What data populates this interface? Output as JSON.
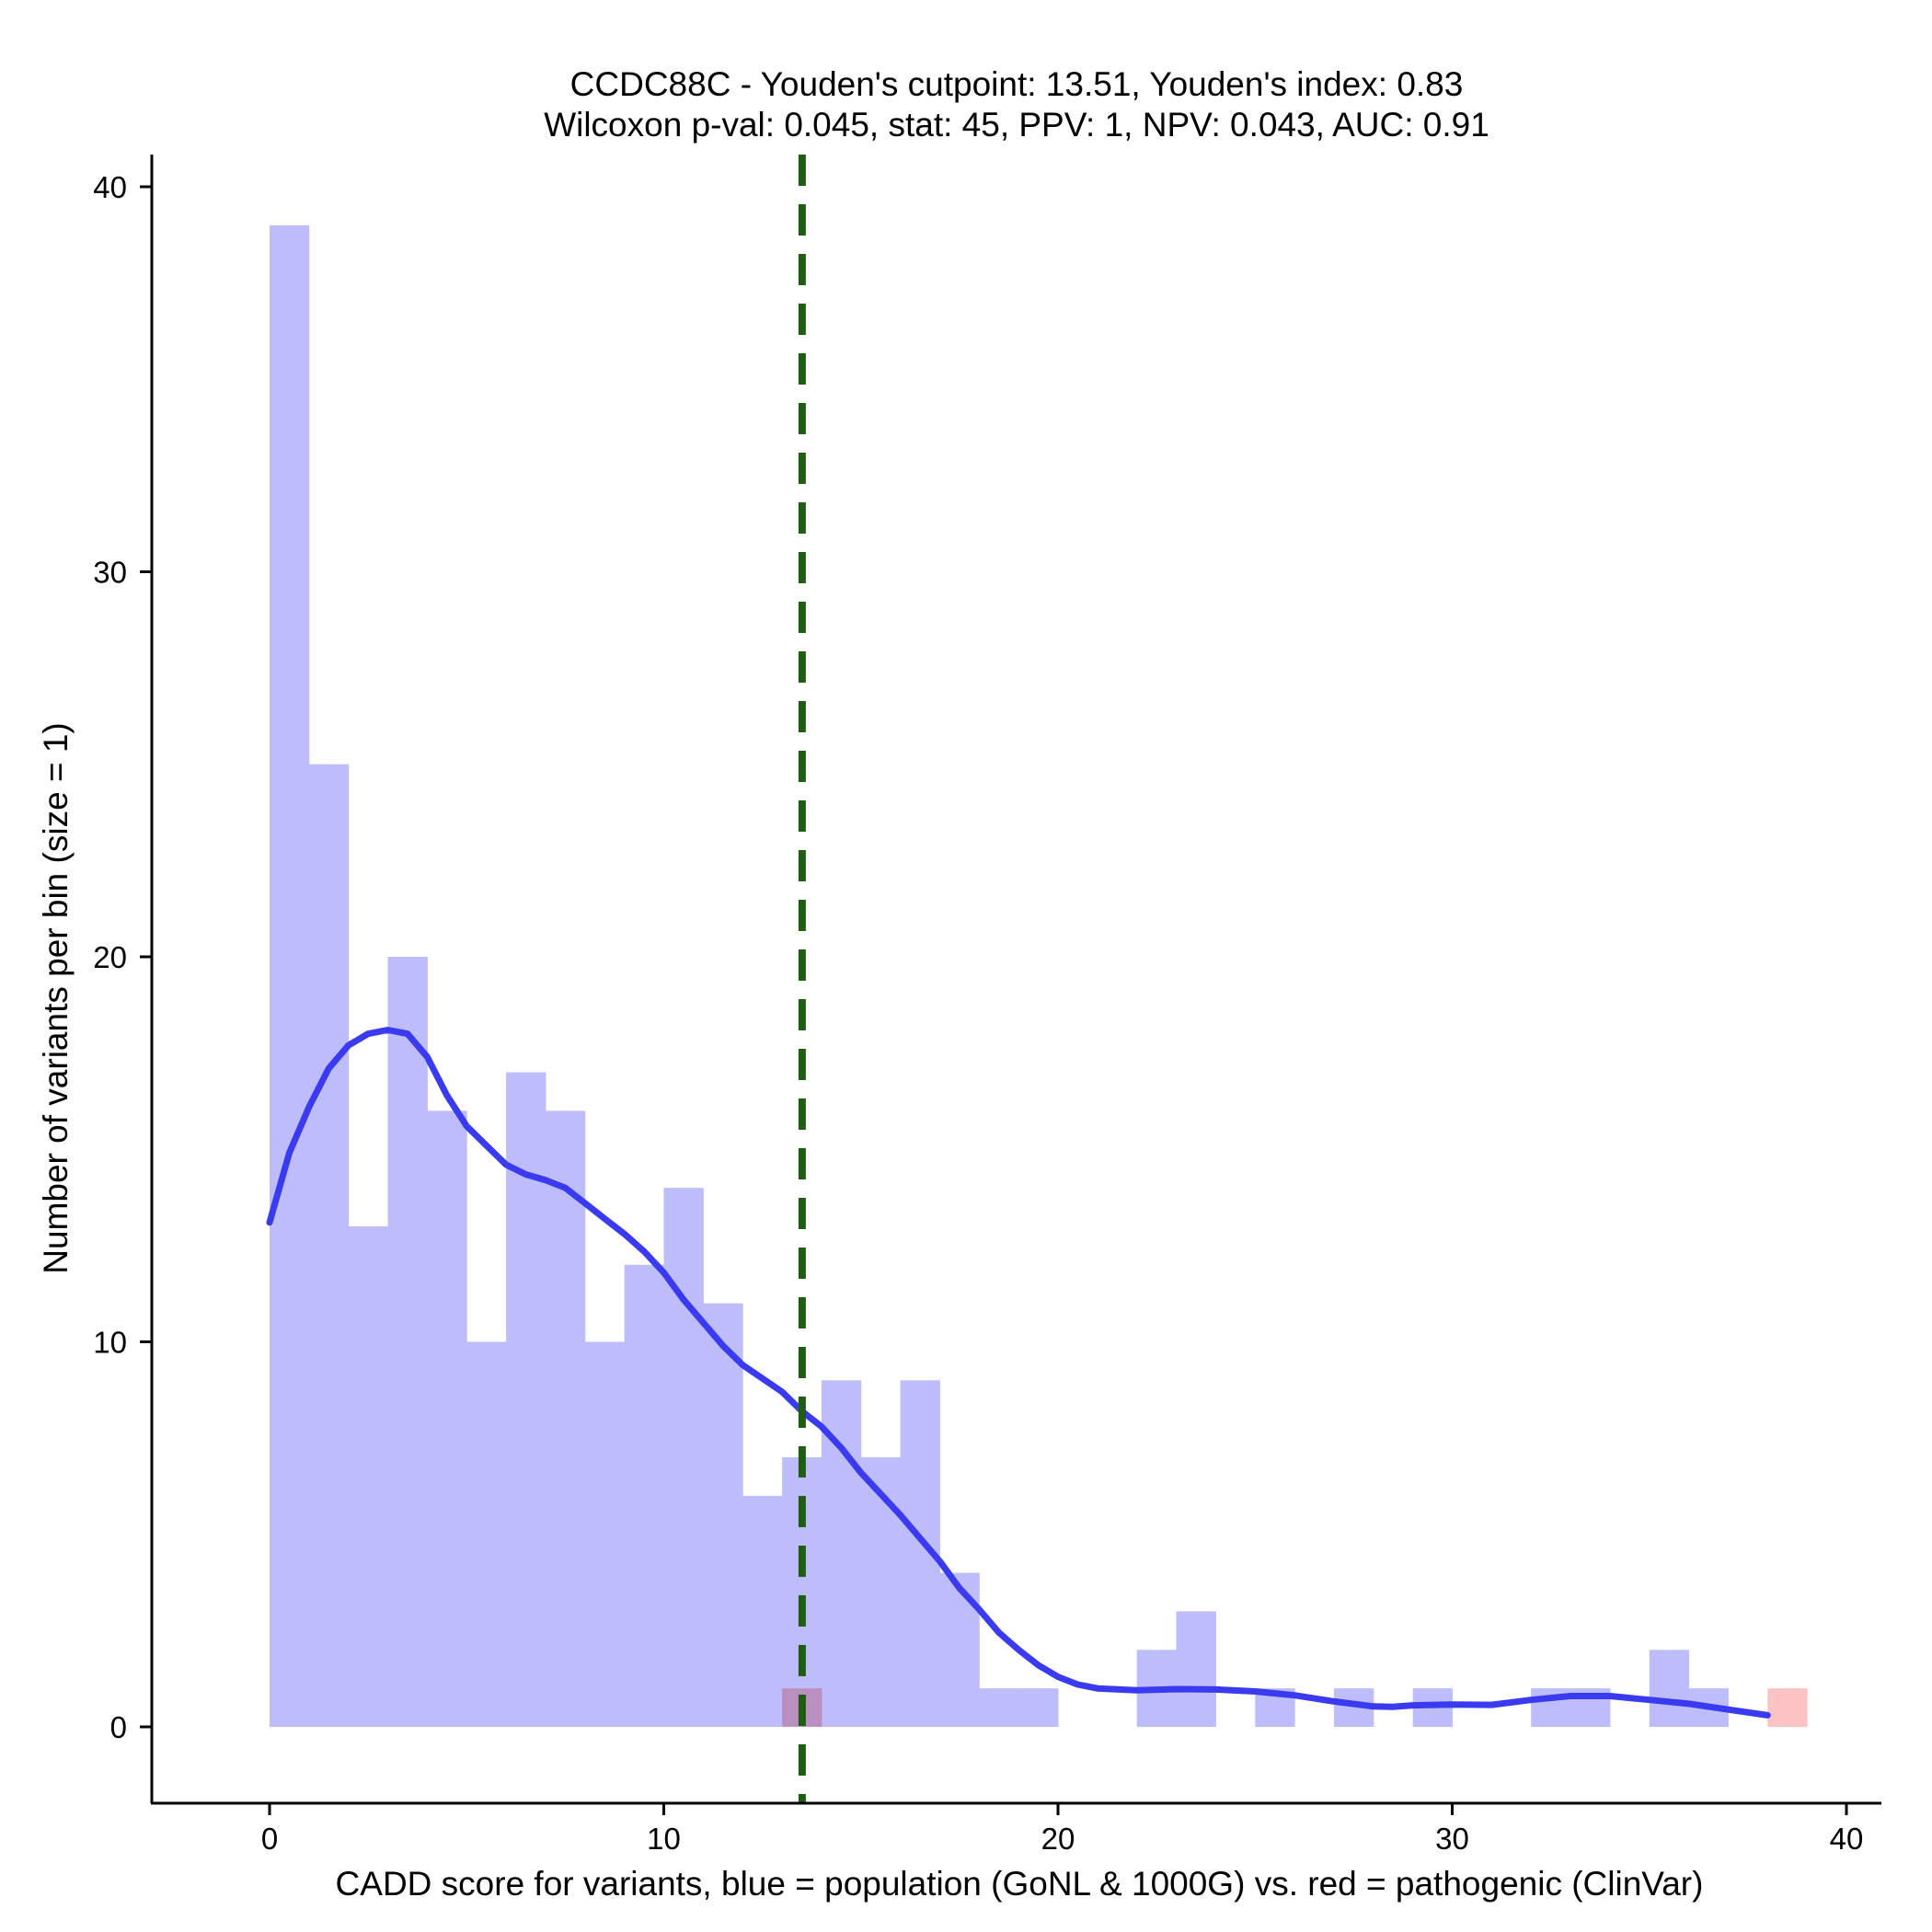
{
  "chart_data": {
    "type": "bar",
    "title": [
      "CCDC88C - Youden's cutpoint: 13.51, Youden's index: 0.83",
      "Wilcoxon p-val: 0.045, stat: 45, PPV: 1, NPV: 0.043, AUC: 0.91"
    ],
    "xlabel": "CADD score for variants, blue = population (GoNL & 1000G) vs. red = pathogenic (ClinVar)",
    "ylabel": "Number of variants per bin (size = 1)",
    "xlim": [
      -3,
      41
    ],
    "ylim": [
      -2,
      41
    ],
    "xticks": [
      0,
      10,
      20,
      30,
      40
    ],
    "yticks": [
      0,
      10,
      20,
      30,
      40
    ],
    "bin_width": 1,
    "series": [
      {
        "name": "population (GoNL & 1000G)",
        "color": "#bdbdfb",
        "bins": [
          {
            "x": 0,
            "value": 39
          },
          {
            "x": 1,
            "value": 25
          },
          {
            "x": 2,
            "value": 13
          },
          {
            "x": 3,
            "value": 20
          },
          {
            "x": 4,
            "value": 16
          },
          {
            "x": 5,
            "value": 10
          },
          {
            "x": 6,
            "value": 17
          },
          {
            "x": 7,
            "value": 16
          },
          {
            "x": 8,
            "value": 10
          },
          {
            "x": 9,
            "value": 12
          },
          {
            "x": 10,
            "value": 14
          },
          {
            "x": 11,
            "value": 11
          },
          {
            "x": 12,
            "value": 6
          },
          {
            "x": 13,
            "value": 7
          },
          {
            "x": 14,
            "value": 9
          },
          {
            "x": 15,
            "value": 7
          },
          {
            "x": 16,
            "value": 9
          },
          {
            "x": 17,
            "value": 4
          },
          {
            "x": 18,
            "value": 1
          },
          {
            "x": 19,
            "value": 1
          },
          {
            "x": 22,
            "value": 2
          },
          {
            "x": 23,
            "value": 3
          },
          {
            "x": 25,
            "value": 1
          },
          {
            "x": 27,
            "value": 1
          },
          {
            "x": 29,
            "value": 1
          },
          {
            "x": 32,
            "value": 1
          },
          {
            "x": 33,
            "value": 1
          },
          {
            "x": 35,
            "value": 2
          },
          {
            "x": 36,
            "value": 1
          }
        ]
      },
      {
        "name": "pathogenic (ClinVar)",
        "color": "#fbbdbd",
        "bins": [
          {
            "x": 13,
            "value": 1
          },
          {
            "x": 38,
            "value": 1
          }
        ]
      }
    ],
    "density_curve": {
      "name": "population density",
      "color": "#3a3af0",
      "points": [
        [
          0,
          13.1
        ],
        [
          0.5,
          14.9
        ],
        [
          1,
          16.1
        ],
        [
          1.5,
          17.1
        ],
        [
          2,
          17.7
        ],
        [
          2.5,
          18.0
        ],
        [
          3,
          18.1
        ],
        [
          3.5,
          18.0
        ],
        [
          4,
          17.4
        ],
        [
          4.5,
          16.4
        ],
        [
          5,
          15.6
        ],
        [
          5.5,
          15.1
        ],
        [
          6,
          14.6
        ],
        [
          6.5,
          14.35
        ],
        [
          7,
          14.2
        ],
        [
          7.5,
          14.0
        ],
        [
          8,
          13.6
        ],
        [
          8.5,
          13.2
        ],
        [
          9,
          12.8
        ],
        [
          9.5,
          12.35
        ],
        [
          10,
          11.8
        ],
        [
          10.5,
          11.1
        ],
        [
          11,
          10.5
        ],
        [
          11.5,
          9.9
        ],
        [
          12,
          9.4
        ],
        [
          12.5,
          9.05
        ],
        [
          13,
          8.7
        ],
        [
          13.5,
          8.2
        ],
        [
          14,
          7.8
        ],
        [
          14.5,
          7.25
        ],
        [
          15,
          6.6
        ],
        [
          15.5,
          6.05
        ],
        [
          16,
          5.5
        ],
        [
          16.5,
          4.9
        ],
        [
          17,
          4.3
        ],
        [
          17.5,
          3.6
        ],
        [
          18,
          3.05
        ],
        [
          18.5,
          2.45
        ],
        [
          19,
          2.0
        ],
        [
          19.5,
          1.6
        ],
        [
          20,
          1.3
        ],
        [
          20.5,
          1.1
        ],
        [
          21,
          1.0
        ],
        [
          22,
          0.95
        ],
        [
          23,
          0.98
        ],
        [
          24,
          0.97
        ],
        [
          25,
          0.92
        ],
        [
          26,
          0.82
        ],
        [
          27,
          0.66
        ],
        [
          28,
          0.53
        ],
        [
          28.5,
          0.52
        ],
        [
          29,
          0.56
        ],
        [
          30,
          0.58
        ],
        [
          31,
          0.57
        ],
        [
          32,
          0.7
        ],
        [
          33,
          0.8
        ],
        [
          34,
          0.8
        ],
        [
          35,
          0.7
        ],
        [
          36,
          0.6
        ],
        [
          37,
          0.45
        ],
        [
          38,
          0.3
        ]
      ]
    },
    "reference_line": {
      "name": "Youden's cutpoint",
      "x": 13.51,
      "color": "#1f5e12",
      "style": "dashed"
    }
  }
}
